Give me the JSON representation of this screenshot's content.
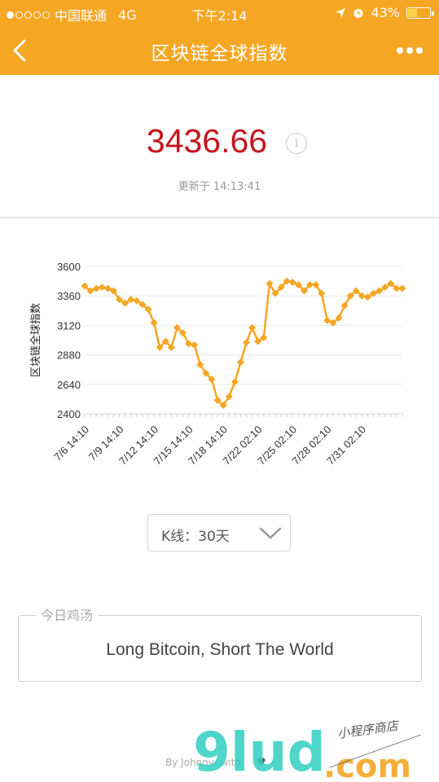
{
  "status_bar": {
    "carrier": "中国联通",
    "network": "4G",
    "time": "下午2:14",
    "battery": "43%",
    "battery_level": 0.43
  },
  "nav": {
    "title": "区块链全球指数",
    "back_icon": "chevron-left-icon",
    "more_icon": "more-dots-icon"
  },
  "index": {
    "value": "3436.66",
    "info_icon": "i",
    "updated": "更新于 14:13:41"
  },
  "chart_data": {
    "type": "line",
    "title": "",
    "ylabel": "区块链全球指数",
    "xlabel": "",
    "ylim": [
      2400,
      3600
    ],
    "yticks": [
      2400,
      2640,
      2880,
      3120,
      3360,
      3600
    ],
    "xtick_labels": [
      "7/6 14:10",
      "7/9 14:10",
      "7/12 14:10",
      "7/15 14:10",
      "7/18 14:10",
      "7/22 02:10",
      "7/25 02:10",
      "7/28 02:10",
      "7/31 02:10"
    ],
    "grid": true,
    "color": "#f5a623",
    "series": [
      {
        "values": [
          3440,
          3400,
          3420,
          3430,
          3420,
          3400,
          3330,
          3300,
          3330,
          3320,
          3290,
          3250,
          3140,
          2940,
          2990,
          2940,
          3100,
          3060,
          2970,
          2960,
          2800,
          2730,
          2680,
          2510,
          2470,
          2540,
          2660,
          2820,
          2980,
          3100,
          2990,
          3020,
          3460,
          3380,
          3430,
          3480,
          3470,
          3450,
          3400,
          3450,
          3450,
          3380,
          3160,
          3140,
          3180,
          3280,
          3360,
          3400,
          3360,
          3350,
          3380,
          3400,
          3430,
          3460,
          3420,
          3420
        ]
      }
    ]
  },
  "kline": {
    "label": "K线：30天",
    "chevron_icon": "chevron-down-icon"
  },
  "quote": {
    "legend": "今日鸡汤",
    "text": "Long Bitcoin, Short The World"
  },
  "footer": {
    "credit": "By Johnny, with",
    "heart": "♥"
  },
  "watermark": {
    "logo": "9lud.com",
    "tagline": "小程序商店"
  }
}
